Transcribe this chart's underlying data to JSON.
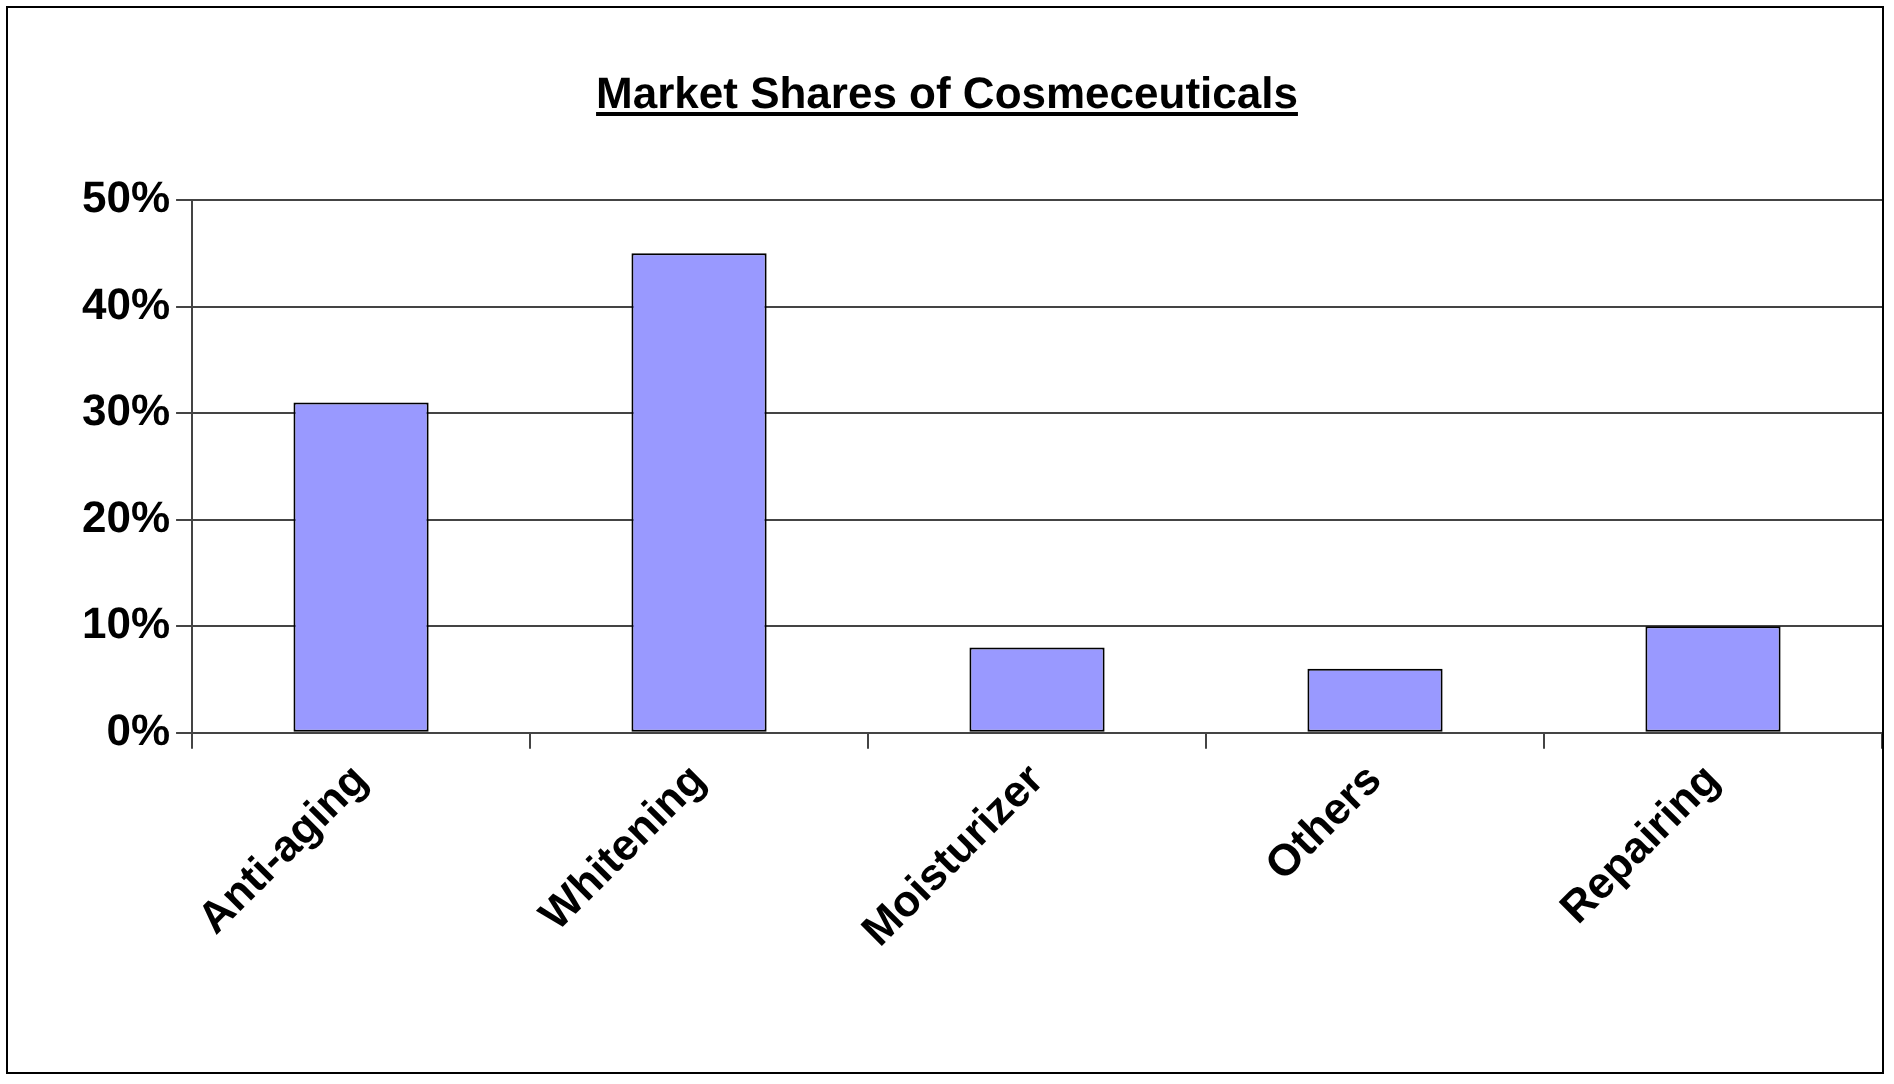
{
  "chart_data": {
    "type": "bar",
    "title": "Market Shares of Cosmeceuticals",
    "categories": [
      "Anti-aging",
      "Whitening",
      "Moisturizer",
      "Others",
      "Repairing"
    ],
    "values": [
      31,
      45,
      8,
      6,
      10
    ],
    "color": "#9999ff",
    "ylim": [
      0,
      50
    ],
    "yticks": [
      {
        "value": 0,
        "label": "0%"
      },
      {
        "value": 10,
        "label": "10%"
      },
      {
        "value": 20,
        "label": "20%"
      },
      {
        "value": 30,
        "label": "30%"
      },
      {
        "value": 40,
        "label": "40%"
      },
      {
        "value": 50,
        "label": "50%"
      }
    ],
    "grid": "y",
    "legend": false
  }
}
